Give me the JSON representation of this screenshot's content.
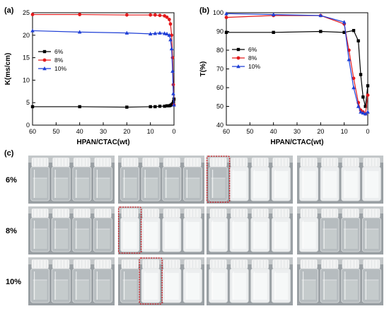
{
  "panels": {
    "a": "(a)",
    "b": "(b)",
    "c": "(c)"
  },
  "chart_data": [
    {
      "id": "a",
      "type": "line",
      "xlabel": "HPAN/CTAC(wt)",
      "ylabel": "K(ms/cm)",
      "xlim": [
        60,
        0
      ],
      "ylim": [
        0,
        25
      ],
      "xticks": [
        "60",
        "50",
        "40",
        "30",
        "20",
        "10",
        "0"
      ],
      "yticks": [
        "0",
        "5",
        "10",
        "15",
        "20",
        "25"
      ],
      "legend_position": "left",
      "series": [
        {
          "name": "6%",
          "color": "#000000",
          "marker": "square",
          "x": [
            60,
            40,
            20,
            10,
            8,
            6,
            4,
            3,
            2,
            1.5,
            1,
            0.5,
            0.2,
            0
          ],
          "y": [
            4.1,
            4.1,
            4.0,
            4.1,
            4.1,
            4.2,
            4.2,
            4.3,
            4.3,
            4.4,
            4.6,
            4.8,
            5.2,
            5.8
          ]
        },
        {
          "name": "8%",
          "color": "#e41a1c",
          "marker": "circle",
          "x": [
            60,
            40,
            20,
            10,
            8,
            6,
            4,
            3,
            2,
            1.5,
            1,
            0.6,
            0.3,
            0
          ],
          "y": [
            24.6,
            24.6,
            24.5,
            24.5,
            24.5,
            24.4,
            24.3,
            24.0,
            23.5,
            22.5,
            20.0,
            15.0,
            9.0,
            4.5
          ]
        },
        {
          "name": "10%",
          "color": "#1f3fd6",
          "marker": "triangle",
          "x": [
            60,
            40,
            20,
            10,
            8,
            6,
            4,
            3,
            2,
            1.5,
            1,
            0.6,
            0.3,
            0
          ],
          "y": [
            21.0,
            20.7,
            20.5,
            20.3,
            20.4,
            20.5,
            20.4,
            20.3,
            20.0,
            19.0,
            17.0,
            12.0,
            7.0,
            4.5
          ]
        }
      ]
    },
    {
      "id": "b",
      "type": "line",
      "xlabel": "HPAN/CTAC(wt)",
      "ylabel": "T(%)",
      "xlim": [
        60,
        0
      ],
      "ylim": [
        40,
        100
      ],
      "xticks": [
        "60",
        "50",
        "40",
        "30",
        "20",
        "10",
        "0"
      ],
      "yticks": [
        "40",
        "50",
        "60",
        "70",
        "80",
        "90",
        "100"
      ],
      "legend_position": "left",
      "series": [
        {
          "name": "6%",
          "color": "#000000",
          "marker": "square",
          "x": [
            60,
            40,
            20,
            10,
            6,
            4,
            3,
            2,
            1,
            0
          ],
          "y": [
            89.5,
            89.5,
            90.0,
            89.5,
            90.5,
            85.0,
            67.0,
            55.0,
            50.0,
            61.0
          ]
        },
        {
          "name": "8%",
          "color": "#e41a1c",
          "marker": "circle",
          "x": [
            60,
            40,
            20,
            10,
            8,
            6,
            4,
            3,
            2,
            1,
            0
          ],
          "y": [
            97.5,
            98.5,
            98.5,
            94.0,
            80.0,
            65.0,
            52.0,
            48.0,
            47.0,
            46.0,
            56.0
          ]
        },
        {
          "name": "10%",
          "color": "#1f3fd6",
          "marker": "triangle",
          "x": [
            60,
            40,
            20,
            10,
            8,
            6,
            4,
            3,
            2,
            1,
            0
          ],
          "y": [
            99.5,
            99.0,
            98.5,
            95.0,
            75.0,
            60.0,
            50.0,
            47.0,
            46.5,
            46.0,
            47.0
          ]
        }
      ]
    }
  ],
  "photo_rows": [
    {
      "label": "6%",
      "groups": [
        {
          "vials": [
            "clear",
            "clear",
            "clear",
            "clear"
          ]
        },
        {
          "vials": [
            "clear",
            "clear",
            "clear",
            "clear"
          ]
        },
        {
          "vials": [
            "clear",
            "milky",
            "milky",
            "milky"
          ],
          "highlight": 0
        },
        {
          "vials": [
            "milky",
            "milky",
            "milky",
            "milky"
          ]
        }
      ]
    },
    {
      "label": "8%",
      "groups": [
        {
          "vials": [
            "clear",
            "clear",
            "clear",
            "clear"
          ]
        },
        {
          "vials": [
            "milky",
            "milky",
            "milky",
            "milky"
          ],
          "highlight": 0
        },
        {
          "vials": [
            "milky",
            "milky",
            "milky",
            "milky"
          ]
        },
        {
          "vials": [
            "milky",
            "clear",
            "clear",
            "clear"
          ]
        }
      ]
    },
    {
      "label": "10%",
      "groups": [
        {
          "vials": [
            "clear",
            "clear",
            "clear",
            "clear"
          ]
        },
        {
          "vials": [
            "clear",
            "milky",
            "milky",
            "milky"
          ],
          "highlight": 1
        },
        {
          "vials": [
            "milky",
            "milky",
            "milky",
            "milky"
          ]
        },
        {
          "vials": [
            "clear",
            "clear",
            "clear",
            "clear"
          ]
        }
      ]
    }
  ]
}
